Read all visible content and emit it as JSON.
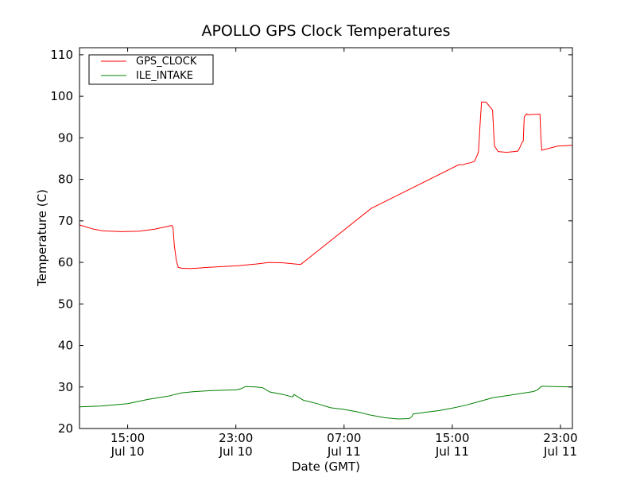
{
  "chart_data": {
    "type": "line",
    "title": "APOLLO GPS Clock Temperatures",
    "xlabel": "Date (GMT)",
    "ylabel": "Temperature (C)",
    "x_units": "hours since Jul 10 00:00 GMT",
    "xlim": [
      11.44,
      47.88
    ],
    "ylim": [
      20,
      111.7
    ],
    "grid": false,
    "legend_position": "top-left",
    "yticks": [
      20,
      30,
      40,
      50,
      60,
      70,
      80,
      90,
      100,
      110
    ],
    "xticks": [
      {
        "value": 15,
        "time": "15:00",
        "date": "Jul 10"
      },
      {
        "value": 23,
        "time": "23:00",
        "date": "Jul 10"
      },
      {
        "value": 31,
        "time": "07:00",
        "date": "Jul 11"
      },
      {
        "value": 39,
        "time": "15:00",
        "date": "Jul 11"
      },
      {
        "value": 47,
        "time": "23:00",
        "date": "Jul 11"
      }
    ],
    "series": [
      {
        "name": "GPS_CLOCK",
        "color": "#ff0000",
        "x": [
          11.44,
          12.5,
          13.19,
          14.5,
          15.82,
          17.0,
          18.0,
          18.27,
          18.35,
          18.45,
          18.6,
          18.74,
          19.0,
          19.61,
          21.0,
          23.12,
          24.5,
          25.45,
          26.5,
          27.79,
          33.0,
          39.47,
          39.8,
          40.05,
          40.35,
          40.64,
          40.93,
          41.05,
          41.16,
          41.5,
          41.98,
          42.05,
          42.12,
          42.39,
          43.0,
          43.85,
          44.0,
          44.14,
          44.25,
          44.32,
          44.49,
          44.6,
          44.78,
          45.48,
          45.55,
          45.62,
          46.2,
          46.8,
          47.88
        ],
        "y": [
          69.0,
          68.0,
          67.6,
          67.4,
          67.5,
          68.0,
          68.7,
          68.9,
          68.5,
          64.0,
          60.5,
          58.8,
          58.6,
          58.5,
          58.8,
          59.2,
          59.6,
          60.0,
          59.9,
          59.5,
          73.0,
          83.5,
          83.5,
          83.8,
          84.0,
          84.3,
          86.5,
          93.0,
          98.6,
          98.6,
          96.7,
          92.0,
          88.0,
          86.7,
          86.5,
          86.8,
          87.7,
          88.8,
          89.2,
          95.0,
          95.8,
          95.5,
          95.6,
          95.7,
          90.0,
          87.0,
          87.5,
          88.0,
          88.2
        ]
      },
      {
        "name": "ILE_INTAKE",
        "color": "#008000",
        "x": [
          11.44,
          13.0,
          15.0,
          16.5,
          18.0,
          19.0,
          20.0,
          21.0,
          22.0,
          23.0,
          23.4,
          23.7,
          24.5,
          25.0,
          25.5,
          26.5,
          27.2,
          27.3,
          28.0,
          29.0,
          30.0,
          31.0,
          32.0,
          33.0,
          34.0,
          35.0,
          35.8,
          36.0,
          36.1,
          37.0,
          38.0,
          39.0,
          40.0,
          41.0,
          42.0,
          43.0,
          44.0,
          45.0,
          45.3,
          45.6,
          46.5,
          47.88
        ],
        "y": [
          25.2,
          25.4,
          26.0,
          27.0,
          27.8,
          28.6,
          28.9,
          29.1,
          29.2,
          29.3,
          29.6,
          30.1,
          30.0,
          29.8,
          28.8,
          28.2,
          27.6,
          28.2,
          26.8,
          26.0,
          25.0,
          24.6,
          24.0,
          23.2,
          22.6,
          22.3,
          22.4,
          22.8,
          23.5,
          23.9,
          24.3,
          24.9,
          25.6,
          26.5,
          27.4,
          27.9,
          28.4,
          28.9,
          29.3,
          30.2,
          30.1,
          30.0
        ]
      }
    ]
  }
}
